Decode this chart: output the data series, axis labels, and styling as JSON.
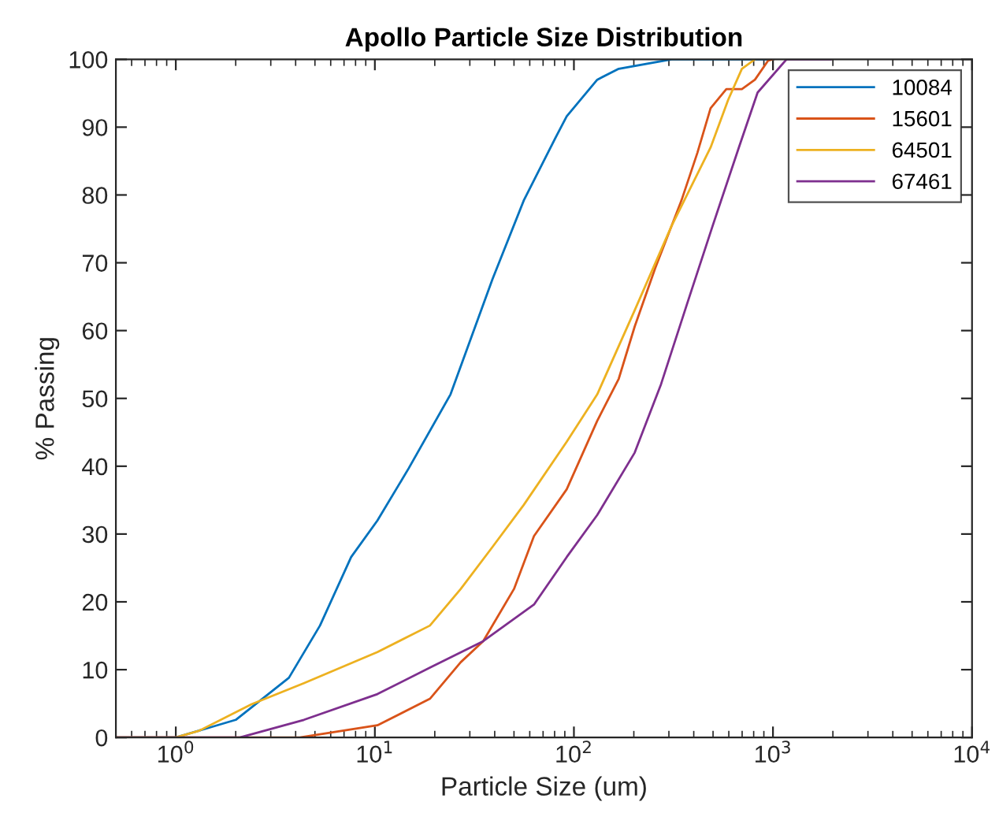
{
  "chart_data": {
    "type": "line",
    "title": "Apollo Particle Size Distribution",
    "xlabel": "Particle Size (um)",
    "ylabel": "% Passing",
    "log": "x",
    "xlim": [
      0.5,
      10000
    ],
    "ylim": [
      0,
      100
    ],
    "xticks": [
      {
        "value": 1,
        "label": "10$^{0}$"
      },
      {
        "value": 10,
        "label": "10$^{1}$"
      },
      {
        "value": 100,
        "label": "10$^{2}$"
      },
      {
        "value": 1000,
        "label": "10$^{3}$"
      },
      {
        "value": 10000,
        "label": "10$^{4}$"
      }
    ],
    "yticks": [
      0,
      10,
      20,
      30,
      40,
      50,
      60,
      70,
      80,
      90,
      100
    ],
    "grid": false,
    "legend": "top right",
    "marker": "none",
    "line_style": "solid",
    "series": [
      {
        "name": "10084",
        "color": "#0072bd",
        "x": [
          0.5,
          1,
          2.0,
          3.7,
          5.3,
          7.6,
          10.3,
          14.8,
          24,
          39,
          56,
          81,
          92,
          131,
          168,
          309,
          1000
        ],
        "values": [
          0,
          0,
          2.6,
          8.8,
          16.5,
          26.6,
          32,
          39.7,
          50.6,
          67.6,
          79.2,
          88.5,
          91.6,
          97,
          98.6,
          100,
          100
        ]
      },
      {
        "name": "15601",
        "color": "#d95319",
        "x": [
          0.5,
          4.2,
          10.3,
          18.9,
          27,
          35,
          50,
          63,
          92,
          131,
          168,
          202,
          256,
          347,
          417,
          486,
          583,
          698,
          812,
          945,
          1000
        ],
        "values": [
          0,
          0,
          1.8,
          5.7,
          11.1,
          14.2,
          21.9,
          29.7,
          36.6,
          46.7,
          52.9,
          60.6,
          69.2,
          79.2,
          86.2,
          92.8,
          95.6,
          95.6,
          97,
          99.8,
          100
        ]
      },
      {
        "name": "64501",
        "color": "#edb120",
        "x": [
          0.5,
          1,
          1.31,
          2.4,
          4.4,
          10.3,
          18.9,
          27,
          39,
          56,
          92,
          131,
          202,
          309,
          486,
          595,
          698,
          812
        ],
        "values": [
          0,
          0,
          1.0,
          4.9,
          8.0,
          12.6,
          16.5,
          21.9,
          28.1,
          34.3,
          43.6,
          50.6,
          63,
          75.4,
          87,
          94,
          98.6,
          100
        ]
      },
      {
        "name": "67461",
        "color": "#7e2f8e",
        "x": [
          0.5,
          2.1,
          4.4,
          10.3,
          18.9,
          35,
          63,
          92,
          131,
          202,
          274,
          369,
          497,
          674,
          837,
          1170,
          1950
        ],
        "values": [
          0,
          0,
          2.6,
          6.4,
          10.3,
          14.2,
          19.6,
          26.6,
          32.8,
          42,
          52.1,
          63.8,
          75.4,
          87,
          95.1,
          100,
          100
        ]
      }
    ]
  }
}
